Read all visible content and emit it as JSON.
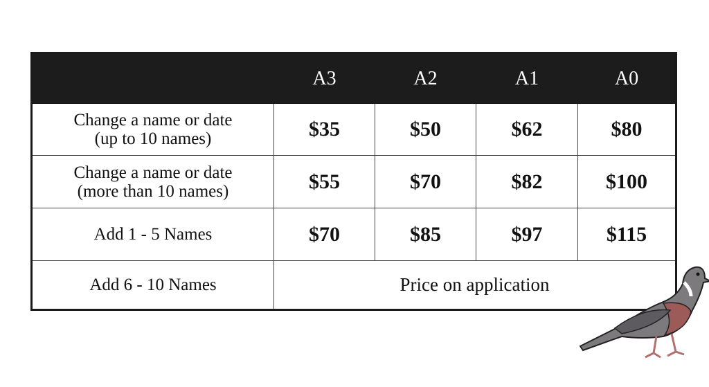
{
  "table": {
    "columns": [
      "A3",
      "A2",
      "A1",
      "A0"
    ],
    "rows": [
      {
        "label": [
          "Change a name or date",
          "(up to 10 names)"
        ],
        "prices": [
          "$35",
          "$50",
          "$62",
          "$80"
        ]
      },
      {
        "label": [
          "Change a name or date",
          "(more than 10 names)"
        ],
        "prices": [
          "$55",
          "$70",
          "$82",
          "$100"
        ]
      },
      {
        "label": [
          "Add 1 - 5 Names"
        ],
        "prices": [
          "$70",
          "$85",
          "$97",
          "$115"
        ]
      },
      {
        "label": [
          "Add 6 - 10 Names"
        ],
        "note": "Price on application"
      }
    ]
  }
}
